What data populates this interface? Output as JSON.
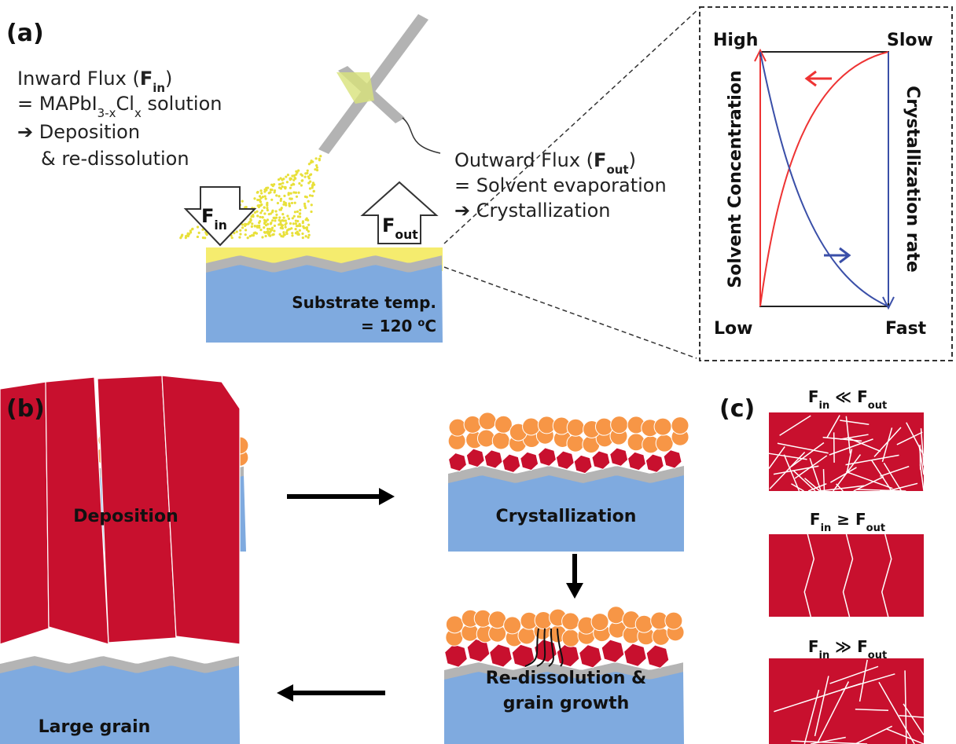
{
  "panels": {
    "a": {
      "label": "(a)",
      "inward": {
        "line1": [
          "Inward Flux (",
          "F",
          "in",
          ")"
        ],
        "line2": [
          "= MAPbI",
          "3-x",
          "Cl",
          "x",
          " solution"
        ],
        "line3": "➔ Deposition",
        "line4": "& re-dissolution"
      },
      "outward": {
        "line1": [
          "Outward Flux (",
          "F",
          "out",
          ")"
        ],
        "line2": "= Solvent evaporation",
        "line3": "➔ Crystallization"
      },
      "arrow_in": [
        "F",
        "in"
      ],
      "arrow_out": [
        "F",
        "out"
      ],
      "substrate": [
        "Substrate temp.",
        "= 120 ",
        "o",
        "C"
      ],
      "graph": {
        "top_left": "High",
        "top_right": "Slow",
        "bottom_left": "Low",
        "bottom_right": "Fast",
        "left_axis": "Solvent Concentration",
        "right_axis": "Crystallization rate"
      }
    },
    "b": {
      "label": "(b)",
      "deposition": "Deposition",
      "crystallization": "Crystallization",
      "redissolution": [
        "Re-dissolution &",
        "grain growth"
      ],
      "large_grain": "Large grain"
    },
    "c": {
      "label": "(c)",
      "conditions": [
        [
          "F",
          "in",
          " ≪ ",
          "F",
          "out"
        ],
        [
          "F",
          "in",
          " ≥ ",
          "F",
          "out"
        ],
        [
          "F",
          "in",
          " ≫ ",
          "F",
          "out"
        ]
      ]
    }
  }
}
